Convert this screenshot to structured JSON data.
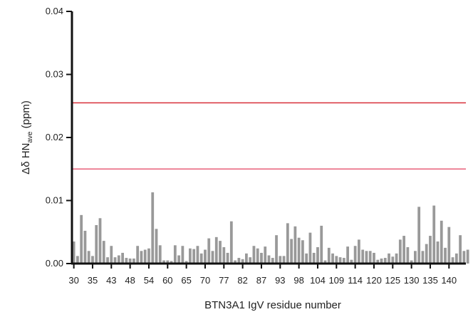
{
  "chart_data": {
    "type": "bar",
    "xlabel": "BTN3A1 IgV residue number",
    "ylabel": {
      "main": "Δδ HN",
      "subscript": "ave",
      "unit": " (ppm)"
    },
    "ylim": [
      0,
      0.04
    ],
    "yticks": [
      "0.00",
      "0.01",
      "0.02",
      "0.03",
      "0.04"
    ],
    "xticks": [
      {
        "label": "30",
        "x": 30
      },
      {
        "label": "35",
        "x": 35
      },
      {
        "label": "43",
        "x": 40
      },
      {
        "label": "48",
        "x": 45
      },
      {
        "label": "54",
        "x": 50
      },
      {
        "label": "60",
        "x": 55
      },
      {
        "label": "65",
        "x": 60
      },
      {
        "label": "70",
        "x": 65
      },
      {
        "label": "77",
        "x": 70
      },
      {
        "label": "82",
        "x": 75
      },
      {
        "label": "87",
        "x": 80
      },
      {
        "label": "93",
        "x": 85
      },
      {
        "label": "98",
        "x": 90
      },
      {
        "label": "104",
        "x": 95
      },
      {
        "label": "109",
        "x": 100
      },
      {
        "label": "114",
        "x": 105
      },
      {
        "label": "120",
        "x": 110
      },
      {
        "label": "125",
        "x": 115
      },
      {
        "label": "130",
        "x": 120
      },
      {
        "label": "135",
        "x": 125
      },
      {
        "label": "140",
        "x": 130
      }
    ],
    "x_range": [
      29.5,
      134.5
    ],
    "bar_color": "#999999",
    "threshold_lines": [
      {
        "value": 0.0255,
        "color": "#d9303a"
      },
      {
        "value": 0.015,
        "color": "#e8607a"
      }
    ],
    "bars": [
      {
        "x": 30,
        "value": 0.0035
      },
      {
        "x": 31,
        "value": 0.0012
      },
      {
        "x": 32,
        "value": 0.0077
      },
      {
        "x": 33,
        "value": 0.0052
      },
      {
        "x": 34,
        "value": 0.002
      },
      {
        "x": 35,
        "value": 0.0012
      },
      {
        "x": 36,
        "value": 0.0061
      },
      {
        "x": 37,
        "value": 0.0072
      },
      {
        "x": 38,
        "value": 0.0036
      },
      {
        "x": 39,
        "value": 0.001
      },
      {
        "x": 40,
        "value": 0.0028
      },
      {
        "x": 41,
        "value": 0.001
      },
      {
        "x": 42,
        "value": 0.0013
      },
      {
        "x": 43,
        "value": 0.0017
      },
      {
        "x": 44,
        "value": 0.0009
      },
      {
        "x": 45,
        "value": 0.0008
      },
      {
        "x": 46,
        "value": 0.0008
      },
      {
        "x": 47,
        "value": 0.0028
      },
      {
        "x": 48,
        "value": 0.002
      },
      {
        "x": 49,
        "value": 0.0022
      },
      {
        "x": 50,
        "value": 0.0024
      },
      {
        "x": 51,
        "value": 0.0113
      },
      {
        "x": 52,
        "value": 0.0055
      },
      {
        "x": 53,
        "value": 0.0029
      },
      {
        "x": 54,
        "value": 0.0005
      },
      {
        "x": 55,
        "value": 0.0005
      },
      {
        "x": 56,
        "value": 0.0004
      },
      {
        "x": 57,
        "value": 0.0029
      },
      {
        "x": 58,
        "value": 0.0013
      },
      {
        "x": 59,
        "value": 0.0028
      },
      {
        "x": 60,
        "value": 0.0004
      },
      {
        "x": 61,
        "value": 0.0024
      },
      {
        "x": 62,
        "value": 0.0023
      },
      {
        "x": 63,
        "value": 0.0028
      },
      {
        "x": 64,
        "value": 0.0016
      },
      {
        "x": 65,
        "value": 0.0022
      },
      {
        "x": 66,
        "value": 0.004
      },
      {
        "x": 67,
        "value": 0.002
      },
      {
        "x": 68,
        "value": 0.0042
      },
      {
        "x": 69,
        "value": 0.0036
      },
      {
        "x": 70,
        "value": 0.0026
      },
      {
        "x": 71,
        "value": 0.0017
      },
      {
        "x": 72,
        "value": 0.0067
      },
      {
        "x": 73,
        "value": 0.0005
      },
      {
        "x": 74,
        "value": 0.0009
      },
      {
        "x": 75,
        "value": 0.0007
      },
      {
        "x": 76,
        "value": 0.0016
      },
      {
        "x": 77,
        "value": 0.001
      },
      {
        "x": 78,
        "value": 0.0028
      },
      {
        "x": 79,
        "value": 0.0024
      },
      {
        "x": 80,
        "value": 0.0017
      },
      {
        "x": 81,
        "value": 0.0027
      },
      {
        "x": 82,
        "value": 0.0013
      },
      {
        "x": 83,
        "value": 0.0009
      },
      {
        "x": 84,
        "value": 0.0045
      },
      {
        "x": 85,
        "value": 0.0012
      },
      {
        "x": 86,
        "value": 0.0012
      },
      {
        "x": 87,
        "value": 0.0064
      },
      {
        "x": 88,
        "value": 0.0039
      },
      {
        "x": 89,
        "value": 0.0059
      },
      {
        "x": 90,
        "value": 0.0041
      },
      {
        "x": 91,
        "value": 0.0037
      },
      {
        "x": 92,
        "value": 0.0016
      },
      {
        "x": 93,
        "value": 0.0049
      },
      {
        "x": 94,
        "value": 0.0017
      },
      {
        "x": 95,
        "value": 0.0026
      },
      {
        "x": 96,
        "value": 0.006
      },
      {
        "x": 97,
        "value": 0.0005
      },
      {
        "x": 98,
        "value": 0.0025
      },
      {
        "x": 99,
        "value": 0.0016
      },
      {
        "x": 100,
        "value": 0.0012
      },
      {
        "x": 101,
        "value": 0.001
      },
      {
        "x": 102,
        "value": 0.0009
      },
      {
        "x": 103,
        "value": 0.0027
      },
      {
        "x": 104,
        "value": 0.0006
      },
      {
        "x": 105,
        "value": 0.0028
      },
      {
        "x": 106,
        "value": 0.0038
      },
      {
        "x": 107,
        "value": 0.0022
      },
      {
        "x": 108,
        "value": 0.002
      },
      {
        "x": 109,
        "value": 0.002
      },
      {
        "x": 110,
        "value": 0.0017
      },
      {
        "x": 111,
        "value": 0.0006
      },
      {
        "x": 112,
        "value": 0.0008
      },
      {
        "x": 113,
        "value": 0.0009
      },
      {
        "x": 114,
        "value": 0.0016
      },
      {
        "x": 115,
        "value": 0.0011
      },
      {
        "x": 116,
        "value": 0.0016
      },
      {
        "x": 117,
        "value": 0.0038
      },
      {
        "x": 118,
        "value": 0.0044
      },
      {
        "x": 119,
        "value": 0.0026
      },
      {
        "x": 120,
        "value": 0.0005
      },
      {
        "x": 121,
        "value": 0.002
      },
      {
        "x": 122,
        "value": 0.009
      },
      {
        "x": 123,
        "value": 0.002
      },
      {
        "x": 124,
        "value": 0.0031
      },
      {
        "x": 125,
        "value": 0.0044
      },
      {
        "x": 126,
        "value": 0.0092
      },
      {
        "x": 127,
        "value": 0.0035
      },
      {
        "x": 128,
        "value": 0.0068
      },
      {
        "x": 129,
        "value": 0.0025
      },
      {
        "x": 130,
        "value": 0.0058
      },
      {
        "x": 131,
        "value": 0.001
      },
      {
        "x": 132,
        "value": 0.0016
      },
      {
        "x": 133,
        "value": 0.0045
      },
      {
        "x": 134,
        "value": 0.002
      },
      {
        "x": 135,
        "value": 0.0022
      }
    ]
  }
}
